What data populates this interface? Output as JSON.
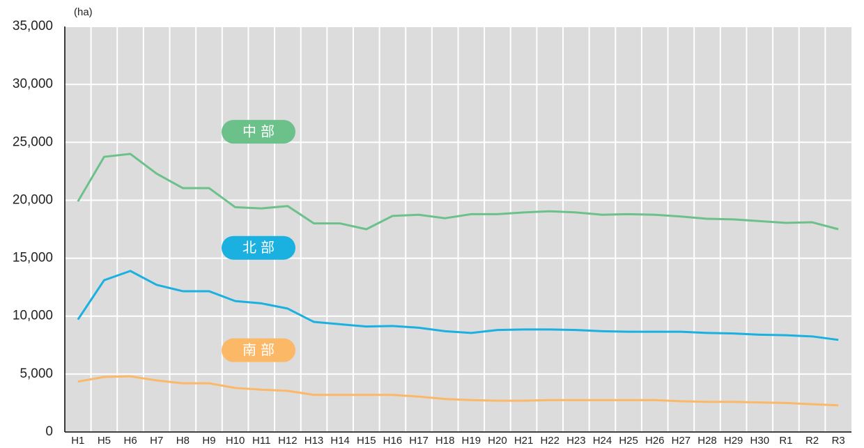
{
  "chart_data": {
    "type": "line",
    "y_unit": "(ha)",
    "categories": [
      "H1",
      "H5",
      "H6",
      "H7",
      "H8",
      "H9",
      "H10",
      "H11",
      "H12",
      "H13",
      "H14",
      "H15",
      "H16",
      "H17",
      "H18",
      "H19",
      "H20",
      "H21",
      "H22",
      "H23",
      "H24",
      "H25",
      "H26",
      "H27",
      "H28",
      "H29",
      "H30",
      "R1",
      "R2",
      "R3"
    ],
    "series": [
      {
        "name": "中部",
        "color": "#6cc18a",
        "values": [
          19900,
          23750,
          24000,
          22300,
          21050,
          21050,
          19400,
          19300,
          19500,
          18000,
          18000,
          17500,
          18650,
          18750,
          18450,
          18800,
          18800,
          18950,
          19050,
          18950,
          18750,
          18800,
          18750,
          18600,
          18400,
          18350,
          18200,
          18050,
          18100,
          17500
        ]
      },
      {
        "name": "北部",
        "color": "#1ab0df",
        "values": [
          9700,
          13100,
          13900,
          12700,
          12150,
          12150,
          11300,
          11100,
          10650,
          9500,
          9300,
          9100,
          9150,
          9000,
          8700,
          8550,
          8800,
          8850,
          8850,
          8800,
          8700,
          8650,
          8650,
          8650,
          8550,
          8500,
          8400,
          8350,
          8250,
          7950
        ]
      },
      {
        "name": "南部",
        "color": "#fbb867",
        "values": [
          4350,
          4750,
          4800,
          4450,
          4200,
          4200,
          3800,
          3650,
          3550,
          3200,
          3200,
          3200,
          3200,
          3050,
          2850,
          2750,
          2700,
          2700,
          2750,
          2750,
          2750,
          2750,
          2750,
          2650,
          2600,
          2600,
          2550,
          2500,
          2400,
          2300
        ]
      }
    ],
    "ylim": [
      0,
      35000
    ],
    "yticks": [
      0,
      {
        "value": 5000,
        "label": "5,000"
      },
      {
        "value": 10000,
        "label": "10,000"
      },
      {
        "value": 15000,
        "label": "15,000"
      },
      {
        "value": 20000,
        "label": "20,000"
      },
      {
        "value": 25000,
        "label": "25,000"
      },
      {
        "value": 30000,
        "label": "30,000"
      },
      {
        "value": 35000,
        "label": "35,000"
      }
    ],
    "grid": true,
    "background": "#dcdcdc"
  }
}
